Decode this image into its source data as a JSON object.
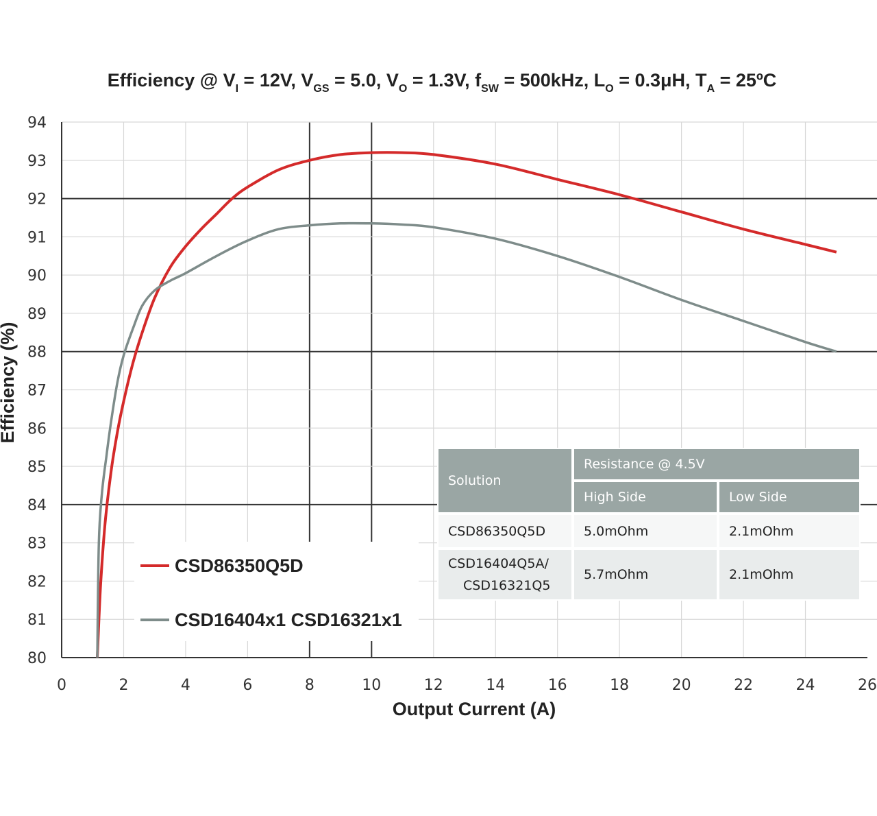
{
  "title": "Efficiency @ Vᵢ = 12V, Vₗₛ = 5.0, Vₒ = 1.3V, fₛᵂ = 500kHz, Lₒ = 0.3μH, Tₐ = 25ºC",
  "title_parts": {
    "efficiency": "Efficiency @ V",
    "vi_sub": "I",
    "vi_val": " = 12V, V",
    "vgs_sub": "GS",
    "vgs_val": " = 5.0, V",
    "vo_sub": "O",
    "vo_val": " = 1.3V, f",
    "fsw_sub": "SW",
    "fsw_val": " = 500kHz, L",
    "lo_sub": "O",
    "lo_val": " = 0.3μH, T",
    "ta_sub": "A",
    "ta_val": " = 25ºC"
  },
  "chart_data": {
    "type": "line",
    "xlabel": "Output Current (A)",
    "ylabel": "Efficiency (%)",
    "xlim": [
      0,
      26
    ],
    "ylim": [
      80,
      94
    ],
    "xticks": [
      "0",
      "2",
      "4",
      "6",
      "8",
      "10",
      "12",
      "14",
      "16",
      "18",
      "20",
      "22",
      "24",
      "26"
    ],
    "yticks": [
      "80",
      "81",
      "82",
      "83",
      "84",
      "85",
      "86",
      "87",
      "88",
      "89",
      "90",
      "91",
      "92",
      "93",
      "94"
    ],
    "grid": true,
    "legend_position": "bottom-left",
    "series": [
      {
        "name": "CSD86350Q5D",
        "color": "#d42a2a",
        "x": [
          1.15,
          1.25,
          1.4,
          1.6,
          1.8,
          2.0,
          2.3,
          2.6,
          3.0,
          3.5,
          4.0,
          4.5,
          5.0,
          5.5,
          6.0,
          7.0,
          8.0,
          9.0,
          10.0,
          11.0,
          12.0,
          14.0,
          16.0,
          18.0,
          20.0,
          22.0,
          24.0,
          25.0
        ],
        "y": [
          80.0,
          81.8,
          83.5,
          84.9,
          85.9,
          86.7,
          87.7,
          88.5,
          89.4,
          90.2,
          90.75,
          91.2,
          91.6,
          92.0,
          92.3,
          92.75,
          93.0,
          93.15,
          93.2,
          93.2,
          93.15,
          92.9,
          92.5,
          92.1,
          91.65,
          91.2,
          90.8,
          90.6
        ]
      },
      {
        "name": "CSD16404x1 CSD16321x1",
        "color": "#7e8c8a",
        "x": [
          1.15,
          1.2,
          1.3,
          1.45,
          1.6,
          1.8,
          2.0,
          2.3,
          2.6,
          3.0,
          3.5,
          4.0,
          5.0,
          6.0,
          7.0,
          8.0,
          9.0,
          10.0,
          11.0,
          12.0,
          14.0,
          16.0,
          18.0,
          20.0,
          22.0,
          24.0,
          25.0
        ],
        "y": [
          80.0,
          83.0,
          84.3,
          85.3,
          86.2,
          87.2,
          87.9,
          88.6,
          89.2,
          89.6,
          89.85,
          90.05,
          90.5,
          90.9,
          91.2,
          91.3,
          91.35,
          91.35,
          91.32,
          91.25,
          90.95,
          90.5,
          89.95,
          89.35,
          88.8,
          88.25,
          88.0
        ]
      }
    ]
  },
  "legend": [
    {
      "label": "CSD86350Q5D",
      "color": "#d42a2a"
    },
    {
      "label": "CSD16404x1 CSD16321x1",
      "color": "#7e8c8a"
    }
  ],
  "table": {
    "solution_header": "Solution",
    "group_header": "Resistance @ 4.5V",
    "high_side_header": "High Side",
    "low_side_header": "Low Side",
    "rows": [
      {
        "solution_line1": "CSD86350Q5D",
        "solution_line2": "",
        "high_side": "5.0mOhm",
        "low_side": "2.1mOhm"
      },
      {
        "solution_line1": "CSD16404Q5A/",
        "solution_line2": "CSD16321Q5",
        "high_side": "5.7mOhm",
        "low_side": "2.1mOhm"
      }
    ]
  }
}
